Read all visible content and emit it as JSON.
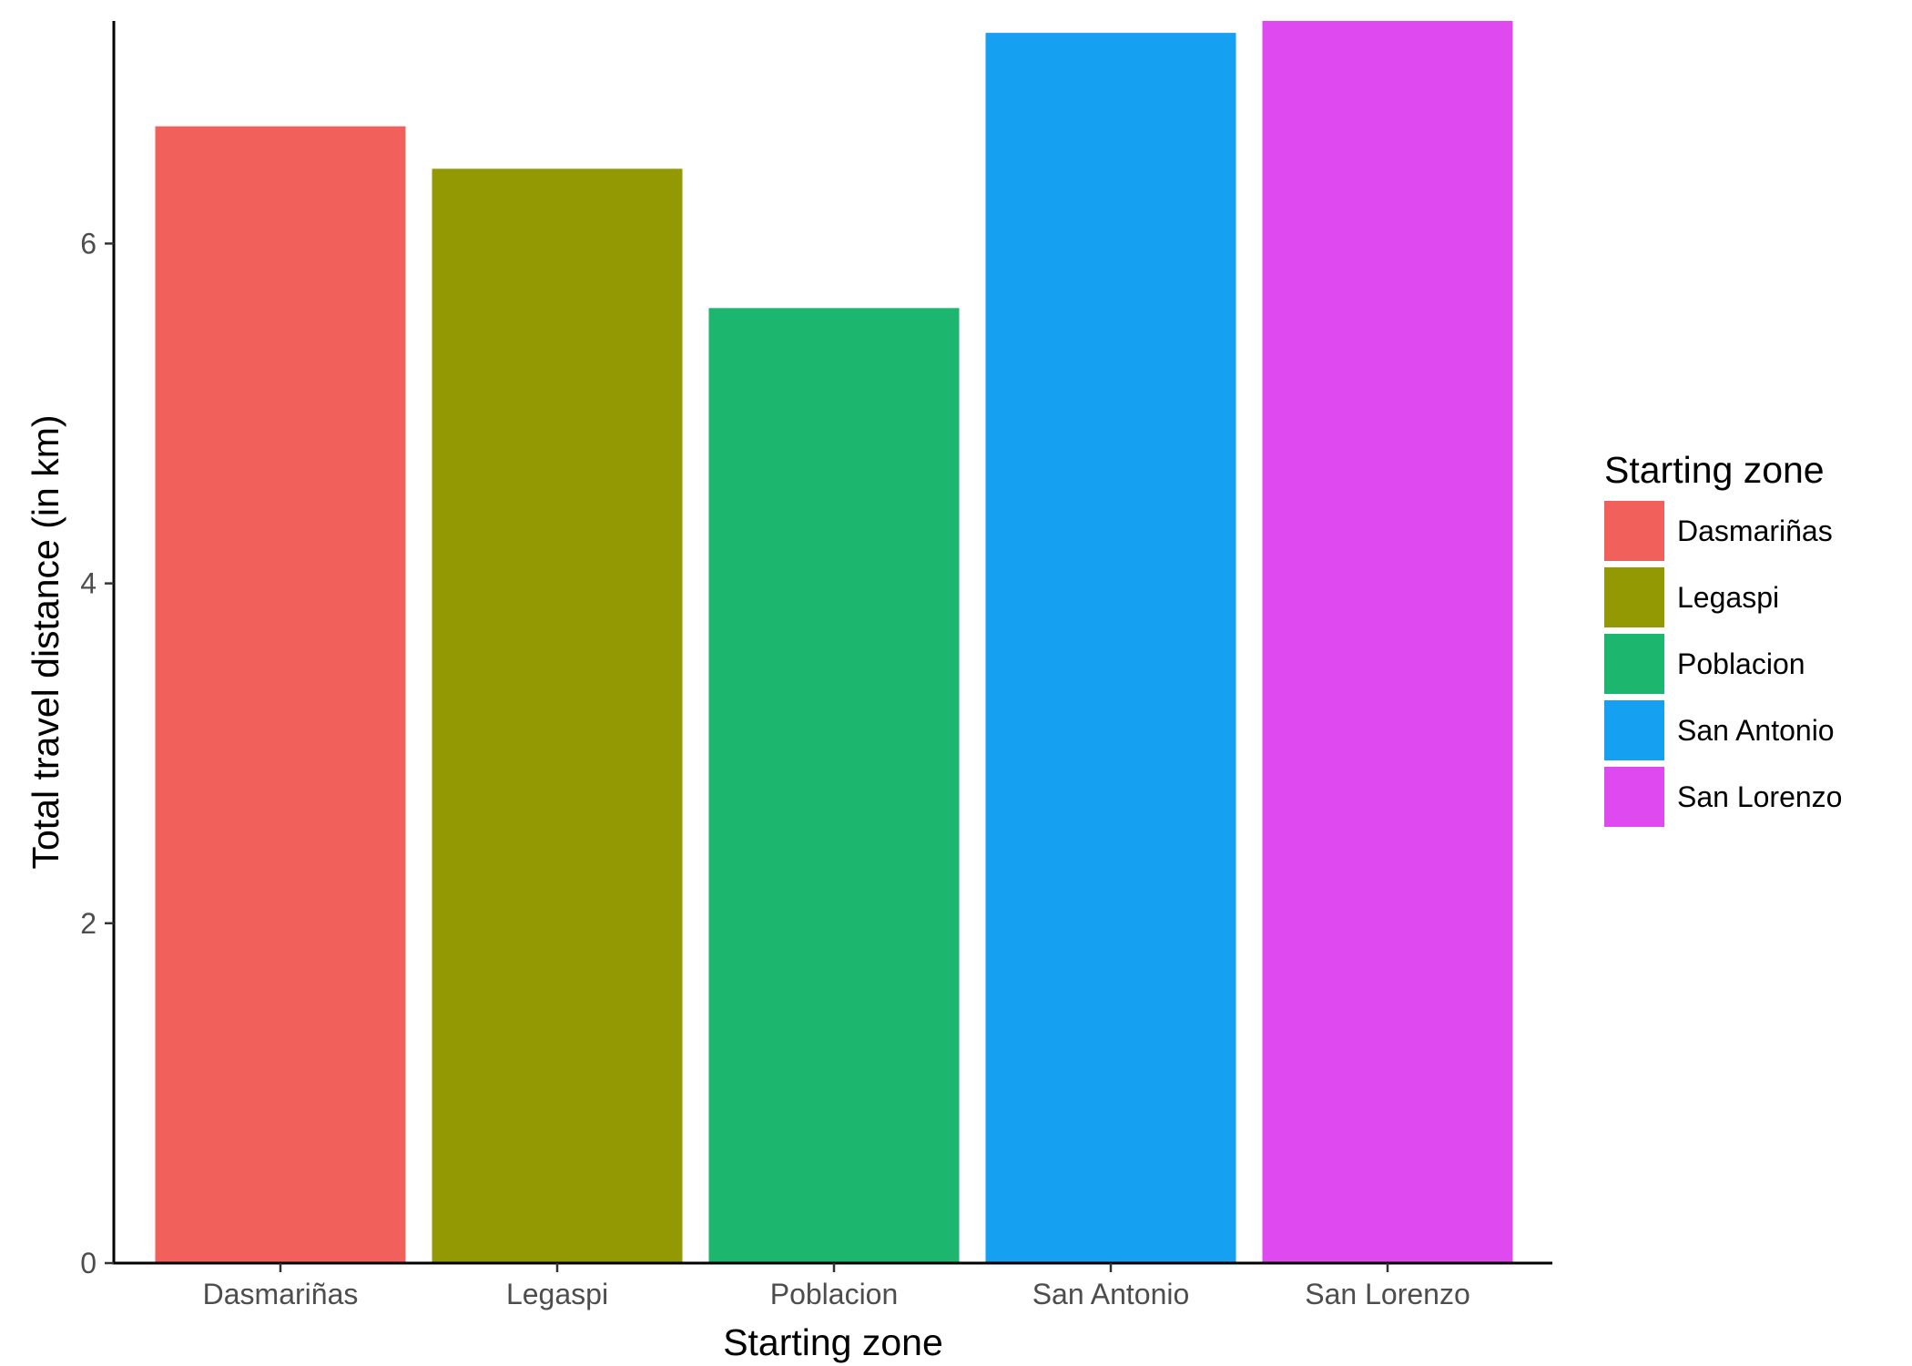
{
  "chart_data": {
    "type": "bar",
    "title": "",
    "xlabel": "Starting zone",
    "ylabel": "Total travel distance (in km)",
    "categories": [
      "Dasmariñas",
      "Legaspi",
      "Poblacion",
      "San Antonio",
      "San Lorenzo"
    ],
    "values": [
      6.69,
      6.44,
      5.62,
      7.24,
      7.31
    ],
    "colors": [
      "#F8766D",
      "#A3A500",
      "#00BF7D",
      "#00B0F6",
      "#E76BF3"
    ],
    "bar_colors": [
      "#F2605B",
      "#939903",
      "#1CB66E",
      "#16A0F2",
      "#DE4AF0"
    ],
    "ylim": [
      0,
      7.31
    ],
    "yticks": [
      0,
      2,
      4,
      6
    ],
    "ytick_labels": [
      "0",
      "2",
      "4",
      "6"
    ],
    "grid": false,
    "legend": {
      "title": "Starting zone",
      "position": "right",
      "entries": [
        "Dasmariñas",
        "Legaspi",
        "Poblacion",
        "San Antonio",
        "San Lorenzo"
      ]
    }
  }
}
